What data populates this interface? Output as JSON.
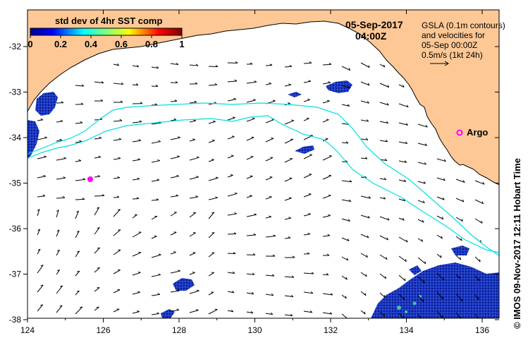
{
  "map": {
    "lon_ticks": [
      "124",
      "126",
      "128",
      "130",
      "132",
      "134",
      "136"
    ],
    "lat_ticks": [
      "-32",
      "-33",
      "-34",
      "-35",
      "-36",
      "-37",
      "-38"
    ],
    "colors": {
      "land": "#fdc896",
      "current": "#00e0e0",
      "argo": "#ff00ff",
      "frame": "#000000"
    }
  },
  "header": {
    "date": "05-Sep-2017",
    "time": "04:00Z"
  },
  "colorbar": {
    "title": "std dev of 4hr SST comp",
    "ticks": [
      "0",
      "0.2",
      "0.4",
      "0.6",
      "0.8",
      "1"
    ]
  },
  "legend": {
    "line1": "GSLA (0.1m contours)",
    "line2": "and velocities for",
    "line3": "05-Sep 00:00Z",
    "line4": "0.5m/s (1kt 24h)"
  },
  "argo_label": "Argo",
  "credit": "© IMOS 09-Nov-2017 12:11 Hobart Time"
}
